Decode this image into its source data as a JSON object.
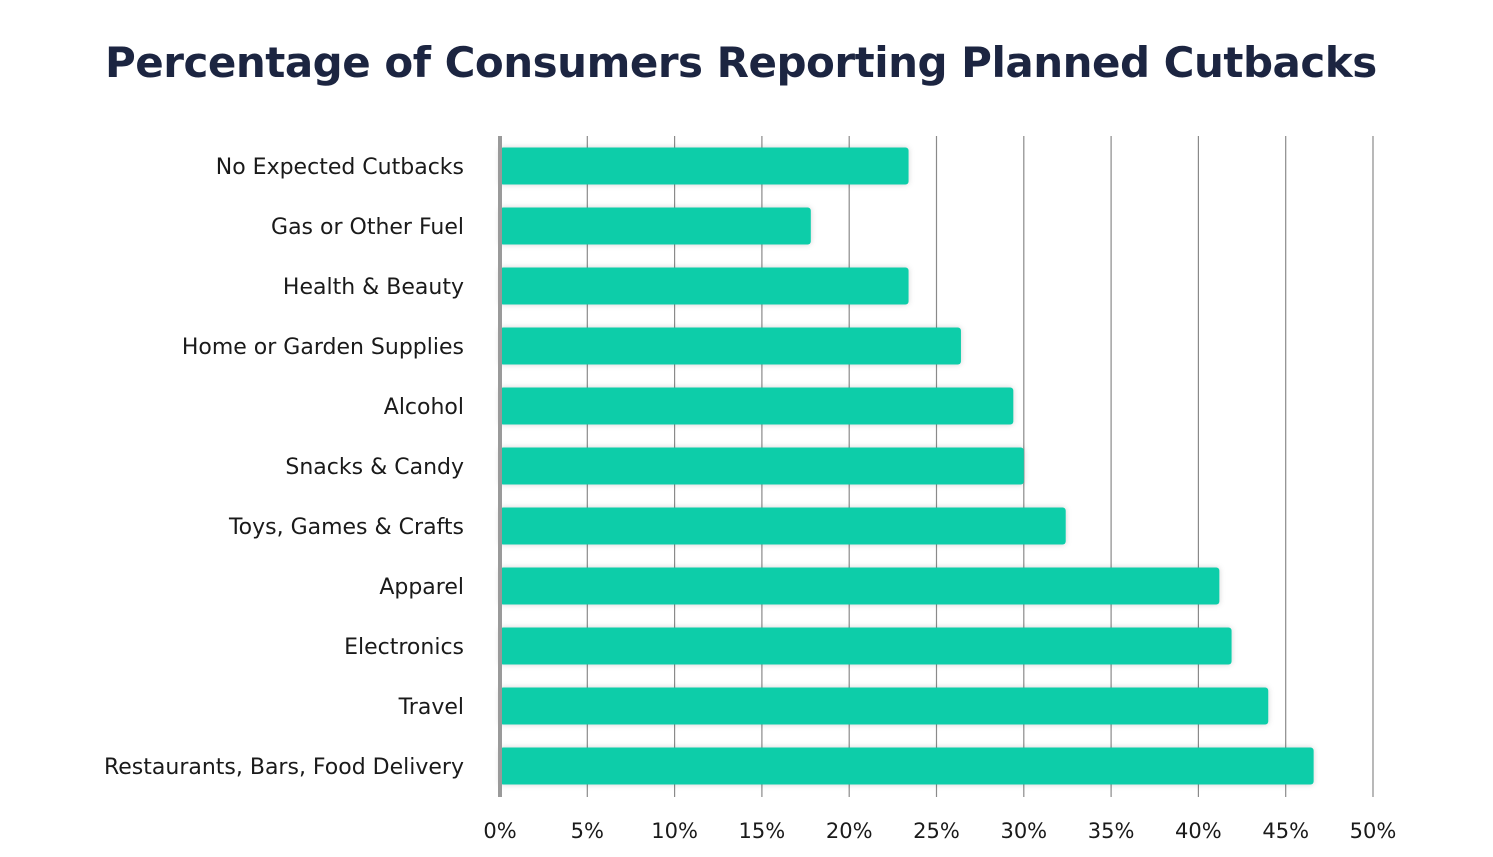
{
  "chart_data": {
    "type": "bar",
    "orientation": "horizontal",
    "title": "Percentage of Consumers Reporting Planned Cutbacks",
    "categories": [
      "No Expected Cutbacks",
      "Gas or Other Fuel",
      "Health & Beauty",
      "Home or Garden Supplies",
      "Alcohol",
      "Snacks & Candy",
      "Toys, Games & Crafts",
      "Apparel",
      "Electronics",
      "Travel",
      "Restaurants, Bars, Food Delivery"
    ],
    "values": [
      23.4,
      17.8,
      23.4,
      26.4,
      29.4,
      30,
      32.4,
      41.2,
      41.9,
      44,
      46.6
    ],
    "xlim": [
      0,
      50
    ],
    "x_ticks": [
      0,
      5,
      10,
      15,
      20,
      25,
      30,
      35,
      40,
      45,
      50
    ],
    "tick_labels": [
      "0%",
      "5%",
      "10%",
      "15%",
      "20%",
      "25%",
      "30%",
      "35%",
      "40%",
      "45%",
      "50%"
    ],
    "xlabel": "",
    "ylabel": "",
    "grid": "vertical",
    "legend": "none",
    "bar_color": "#0ccda9",
    "grid_color": "#8a8a8a",
    "axis_color": "#9a9a9a"
  }
}
